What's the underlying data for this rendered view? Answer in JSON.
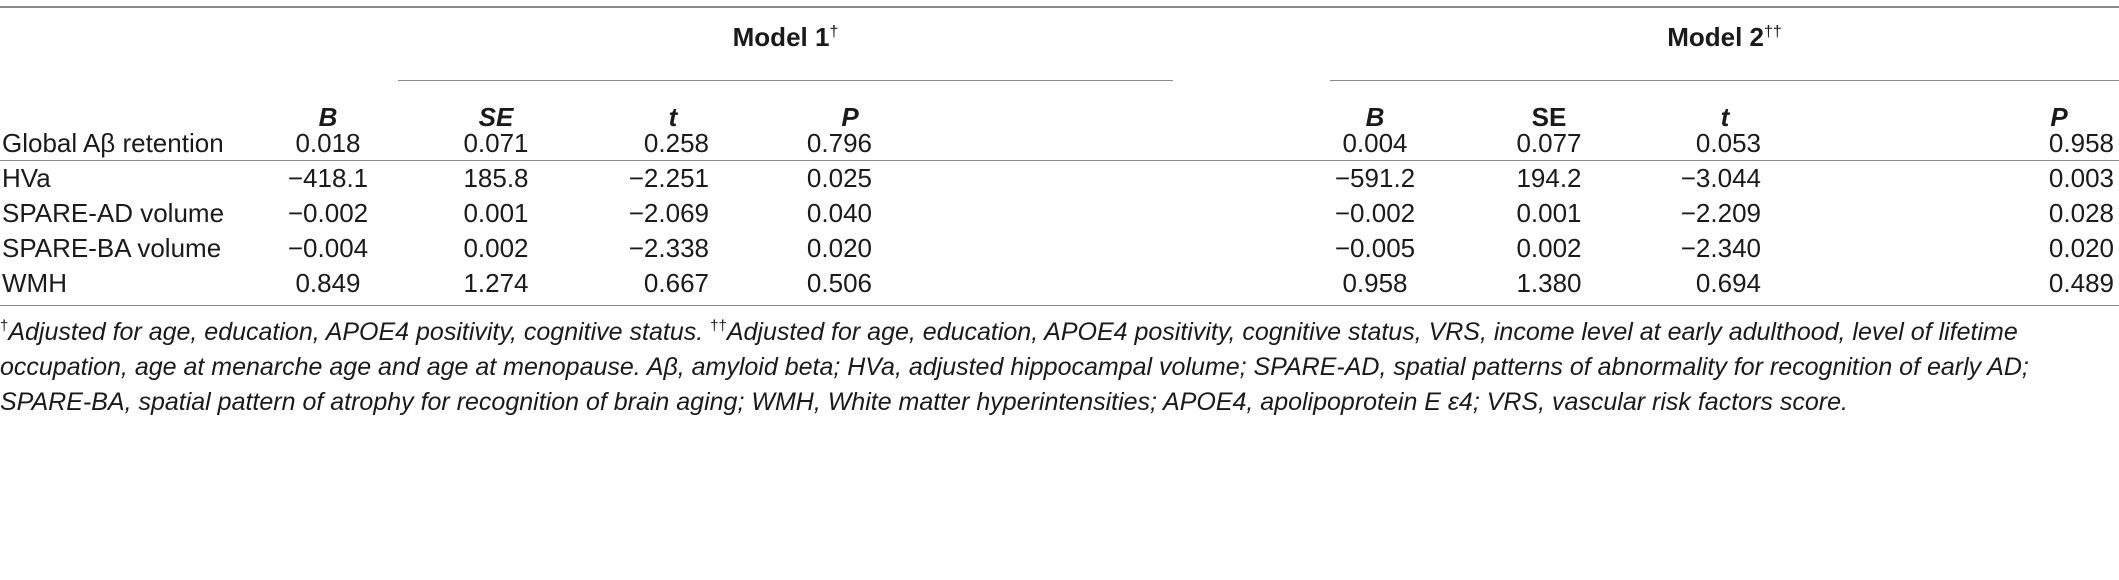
{
  "table": {
    "group1": {
      "title": "Model 1",
      "mark": "†"
    },
    "group2": {
      "title": "Model 2",
      "mark": "††"
    },
    "columns1": [
      "B",
      "SE",
      "t",
      "P"
    ],
    "columns2": [
      "B",
      "SE",
      "t",
      "P"
    ],
    "rows": [
      {
        "label": "Global Aβ retention",
        "m1": [
          "0.018",
          "0.071",
          "0.258",
          "0.796"
        ],
        "m2": [
          "0.004",
          "0.077",
          "0.053",
          "0.958"
        ]
      },
      {
        "label": "HVa",
        "m1": [
          "−418.1",
          "185.8",
          "−2.251",
          "0.025"
        ],
        "m2": [
          "−591.2",
          "194.2",
          "−3.044",
          "0.003"
        ]
      },
      {
        "label": "SPARE-AD volume",
        "m1": [
          "−0.002",
          "0.001",
          "−2.069",
          "0.040"
        ],
        "m2": [
          "−0.002",
          "0.001",
          "−2.209",
          "0.028"
        ]
      },
      {
        "label": "SPARE-BA volume",
        "m1": [
          "−0.004",
          "0.002",
          "−2.338",
          "0.020"
        ],
        "m2": [
          "−0.005",
          "0.002",
          "−2.340",
          "0.020"
        ]
      },
      {
        "label": "WMH",
        "m1": [
          "0.849",
          "1.274",
          "0.667",
          "0.506"
        ],
        "m2": [
          "0.958",
          "1.380",
          "0.694",
          "0.489"
        ]
      }
    ]
  },
  "footnote": {
    "mark1": "†",
    "text1": "Adjusted for age, education, APOE4 positivity, cognitive status. ",
    "mark2": "††",
    "text2": "Adjusted for age, education, APOE4 positivity, cognitive status, VRS, income level at early adulthood, level of lifetime occupation, age at menarche age and age at menopause. Aβ, amyloid beta; HVa, adjusted hippocampal volume; SPARE-AD, spatial patterns of abnormality for recognition of early AD; SPARE-BA, spatial pattern of atrophy for recognition of brain aging; WMH, White matter hyperintensities; APOE4, apolipoprotein E ε4; VRS, vascular risk factors score."
  }
}
